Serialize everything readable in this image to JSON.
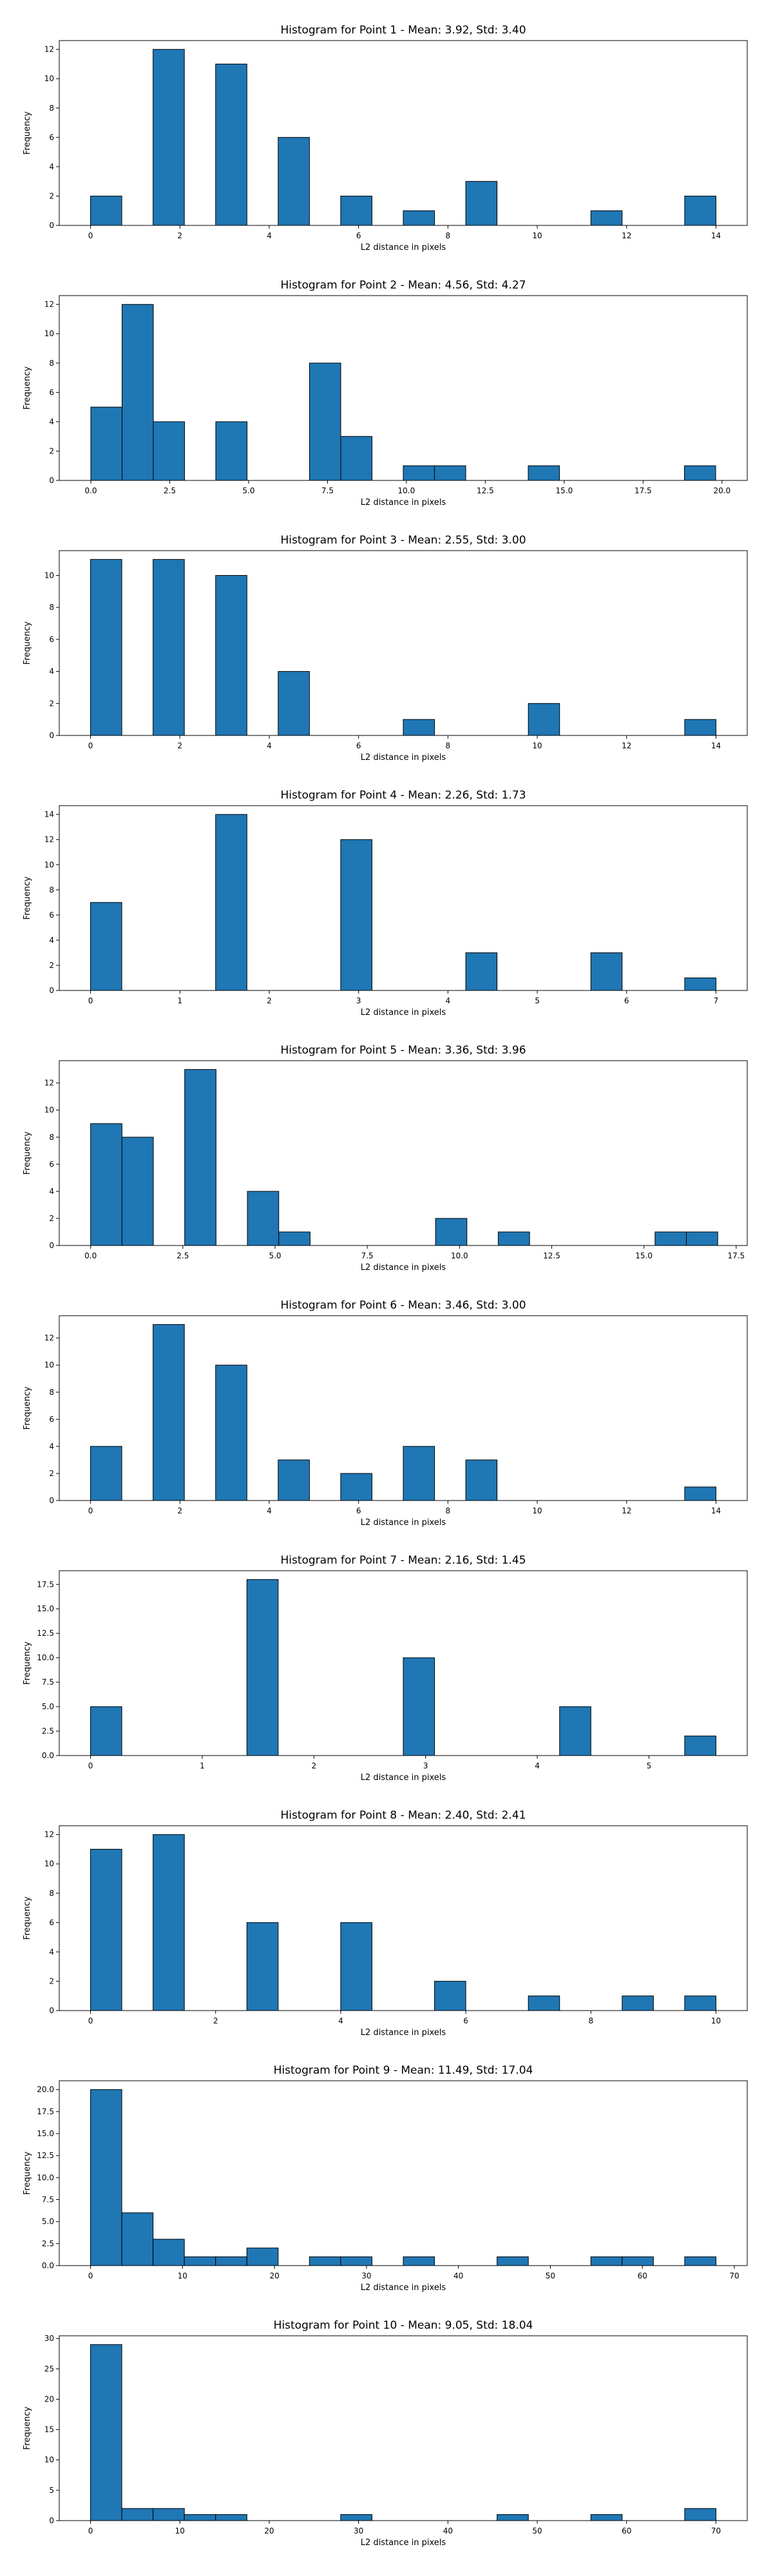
{
  "colors": {
    "bar_fill": "#1f77b4",
    "bar_edge": "#000000",
    "background": "#ffffff"
  },
  "chart_data": [
    {
      "type": "bar",
      "title": "Histogram for Point 1 - Mean: 3.92, Std: 3.40",
      "xlabel": "L2 distance in pixels",
      "ylabel": "Frequency",
      "xlim": [
        -0.7,
        14.7
      ],
      "ylim": [
        0,
        12.6
      ],
      "xticks": [
        0,
        2,
        4,
        6,
        8,
        10,
        12,
        14
      ],
      "yticks": [
        0,
        2,
        4,
        6,
        8,
        10,
        12
      ],
      "bin_width": 0.7,
      "bins": [
        {
          "x0": 0.0,
          "value": 2
        },
        {
          "x0": 1.4,
          "value": 12
        },
        {
          "x0": 2.8,
          "value": 11
        },
        {
          "x0": 4.2,
          "value": 6
        },
        {
          "x0": 5.6,
          "value": 2
        },
        {
          "x0": 7.0,
          "value": 1
        },
        {
          "x0": 8.4,
          "value": 3
        },
        {
          "x0": 11.2,
          "value": 1
        },
        {
          "x0": 13.3,
          "value": 2
        }
      ]
    },
    {
      "type": "bar",
      "title": "Histogram for Point 2 - Mean: 4.56, Std: 4.27",
      "xlabel": "L2 distance in pixels",
      "ylabel": "Frequency",
      "xlim": [
        -1.0,
        20.8
      ],
      "ylim": [
        0,
        12.6
      ],
      "xticks": [
        0.0,
        2.5,
        5.0,
        7.5,
        10.0,
        12.5,
        15.0,
        17.5,
        20.0
      ],
      "ytick_format": "int",
      "xtick_format": "1",
      "yticks": [
        0,
        2,
        4,
        6,
        8,
        10,
        12
      ],
      "bin_width": 0.99,
      "bins": [
        {
          "x0": 0.0,
          "value": 5
        },
        {
          "x0": 0.99,
          "value": 12
        },
        {
          "x0": 1.98,
          "value": 4
        },
        {
          "x0": 3.96,
          "value": 4
        },
        {
          "x0": 6.93,
          "value": 8
        },
        {
          "x0": 7.92,
          "value": 3
        },
        {
          "x0": 9.9,
          "value": 1
        },
        {
          "x0": 10.89,
          "value": 1
        },
        {
          "x0": 13.86,
          "value": 1
        },
        {
          "x0": 18.81,
          "value": 1
        }
      ]
    },
    {
      "type": "bar",
      "title": "Histogram for Point 3 - Mean: 2.55, Std: 3.00",
      "xlabel": "L2 distance in pixels",
      "ylabel": "Frequency",
      "xlim": [
        -0.7,
        14.7
      ],
      "ylim": [
        0,
        11.55
      ],
      "xticks": [
        0,
        2,
        4,
        6,
        8,
        10,
        12,
        14
      ],
      "yticks": [
        0,
        2,
        4,
        6,
        8,
        10
      ],
      "bin_width": 0.7,
      "bins": [
        {
          "x0": 0.0,
          "value": 11
        },
        {
          "x0": 1.4,
          "value": 11
        },
        {
          "x0": 2.8,
          "value": 10
        },
        {
          "x0": 4.2,
          "value": 4
        },
        {
          "x0": 7.0,
          "value": 1
        },
        {
          "x0": 9.8,
          "value": 2
        },
        {
          "x0": 13.3,
          "value": 1
        }
      ]
    },
    {
      "type": "bar",
      "title": "Histogram for Point 4 - Mean: 2.26, Std: 1.73",
      "xlabel": "L2 distance in pixels",
      "ylabel": "Frequency",
      "xlim": [
        -0.35,
        7.35
      ],
      "ylim": [
        0,
        14.7
      ],
      "xticks": [
        0,
        1,
        2,
        3,
        4,
        5,
        6,
        7
      ],
      "yticks": [
        0,
        2,
        4,
        6,
        8,
        10,
        12,
        14
      ],
      "bin_width": 0.35,
      "bins": [
        {
          "x0": 0.0,
          "value": 7
        },
        {
          "x0": 1.4,
          "value": 14
        },
        {
          "x0": 2.8,
          "value": 12
        },
        {
          "x0": 4.2,
          "value": 3
        },
        {
          "x0": 5.6,
          "value": 3
        },
        {
          "x0": 6.65,
          "value": 1
        }
      ]
    },
    {
      "type": "bar",
      "title": "Histogram for Point 5 - Mean: 3.36, Std: 3.96",
      "xlabel": "L2 distance in pixels",
      "ylabel": "Frequency",
      "xlim": [
        -0.85,
        17.8
      ],
      "ylim": [
        0,
        13.65
      ],
      "xticks": [
        0.0,
        2.5,
        5.0,
        7.5,
        10.0,
        12.5,
        15.0,
        17.5
      ],
      "xtick_format": "1",
      "yticks": [
        0,
        2,
        4,
        6,
        8,
        10,
        12
      ],
      "bin_width": 0.85,
      "bins": [
        {
          "x0": 0.0,
          "value": 9
        },
        {
          "x0": 0.85,
          "value": 8
        },
        {
          "x0": 2.55,
          "value": 13
        },
        {
          "x0": 4.25,
          "value": 4
        },
        {
          "x0": 5.1,
          "value": 1
        },
        {
          "x0": 9.35,
          "value": 2
        },
        {
          "x0": 11.05,
          "value": 1
        },
        {
          "x0": 15.3,
          "value": 1
        },
        {
          "x0": 16.15,
          "value": 1
        }
      ]
    },
    {
      "type": "bar",
      "title": "Histogram for Point 6 - Mean: 3.46, Std: 3.00",
      "xlabel": "L2 distance in pixels",
      "ylabel": "Frequency",
      "xlim": [
        -0.7,
        14.7
      ],
      "ylim": [
        0,
        13.65
      ],
      "xticks": [
        0,
        2,
        4,
        6,
        8,
        10,
        12,
        14
      ],
      "yticks": [
        0,
        2,
        4,
        6,
        8,
        10,
        12
      ],
      "bin_width": 0.7,
      "bins": [
        {
          "x0": 0.0,
          "value": 4
        },
        {
          "x0": 1.4,
          "value": 13
        },
        {
          "x0": 2.8,
          "value": 10
        },
        {
          "x0": 4.2,
          "value": 3
        },
        {
          "x0": 5.6,
          "value": 2
        },
        {
          "x0": 7.0,
          "value": 4
        },
        {
          "x0": 8.4,
          "value": 3
        },
        {
          "x0": 13.3,
          "value": 1
        }
      ]
    },
    {
      "type": "bar",
      "title": "Histogram for Point 7 - Mean: 2.16, Std: 1.45",
      "xlabel": "L2 distance in pixels",
      "ylabel": "Frequency",
      "xlim": [
        -0.28,
        5.88
      ],
      "ylim": [
        0,
        18.9
      ],
      "xticks": [
        0,
        1,
        2,
        3,
        4,
        5
      ],
      "yticks": [
        0.0,
        2.5,
        5.0,
        7.5,
        10.0,
        12.5,
        15.0,
        17.5
      ],
      "ytick_format": "1",
      "bin_width": 0.28,
      "bins": [
        {
          "x0": 0.0,
          "value": 5
        },
        {
          "x0": 1.4,
          "value": 18
        },
        {
          "x0": 2.8,
          "value": 10
        },
        {
          "x0": 4.2,
          "value": 5
        },
        {
          "x0": 5.32,
          "value": 2
        }
      ]
    },
    {
      "type": "bar",
      "title": "Histogram for Point 8 - Mean: 2.40, Std: 2.41",
      "xlabel": "L2 distance in pixels",
      "ylabel": "Frequency",
      "xlim": [
        -0.5,
        10.5
      ],
      "ylim": [
        0,
        12.6
      ],
      "xticks": [
        0,
        2,
        4,
        6,
        8,
        10
      ],
      "yticks": [
        0,
        2,
        4,
        6,
        8,
        10,
        12
      ],
      "bin_width": 0.5,
      "bins": [
        {
          "x0": 0.0,
          "value": 11
        },
        {
          "x0": 1.0,
          "value": 12
        },
        {
          "x0": 2.5,
          "value": 6
        },
        {
          "x0": 4.0,
          "value": 6
        },
        {
          "x0": 5.5,
          "value": 2
        },
        {
          "x0": 7.0,
          "value": 1
        },
        {
          "x0": 8.5,
          "value": 1
        },
        {
          "x0": 9.5,
          "value": 1
        }
      ]
    },
    {
      "type": "bar",
      "title": "Histogram for Point 9 - Mean: 11.49, Std: 17.04",
      "xlabel": "L2 distance in pixels",
      "ylabel": "Frequency",
      "xlim": [
        -3.4,
        71.4
      ],
      "ylim": [
        0,
        21.0
      ],
      "xticks": [
        0,
        10,
        20,
        30,
        40,
        50,
        60,
        70
      ],
      "yticks": [
        0.0,
        2.5,
        5.0,
        7.5,
        10.0,
        12.5,
        15.0,
        17.5,
        20.0
      ],
      "ytick_format": "1",
      "bin_width": 3.4,
      "bins": [
        {
          "x0": 0.0,
          "value": 20
        },
        {
          "x0": 3.4,
          "value": 6
        },
        {
          "x0": 6.8,
          "value": 3
        },
        {
          "x0": 10.2,
          "value": 1
        },
        {
          "x0": 13.6,
          "value": 1
        },
        {
          "x0": 17.0,
          "value": 2
        },
        {
          "x0": 23.8,
          "value": 1
        },
        {
          "x0": 27.2,
          "value": 1
        },
        {
          "x0": 34.0,
          "value": 1
        },
        {
          "x0": 44.2,
          "value": 1
        },
        {
          "x0": 54.4,
          "value": 1
        },
        {
          "x0": 57.8,
          "value": 1
        },
        {
          "x0": 64.6,
          "value": 1
        }
      ]
    },
    {
      "type": "bar",
      "title": "Histogram for Point 10 - Mean: 9.05, Std: 18.04",
      "xlabel": "L2 distance in pixels",
      "ylabel": "Frequency",
      "xlim": [
        -3.5,
        73.5
      ],
      "ylim": [
        0,
        30.45
      ],
      "xticks": [
        0,
        10,
        20,
        30,
        40,
        50,
        60,
        70
      ],
      "yticks": [
        0,
        5,
        10,
        15,
        20,
        25,
        30
      ],
      "bin_width": 3.5,
      "bins": [
        {
          "x0": 0.0,
          "value": 29
        },
        {
          "x0": 3.5,
          "value": 2
        },
        {
          "x0": 7.0,
          "value": 2
        },
        {
          "x0": 10.5,
          "value": 1
        },
        {
          "x0": 14.0,
          "value": 1
        },
        {
          "x0": 28.0,
          "value": 1
        },
        {
          "x0": 45.5,
          "value": 1
        },
        {
          "x0": 56.0,
          "value": 1
        },
        {
          "x0": 66.5,
          "value": 2
        }
      ]
    }
  ]
}
